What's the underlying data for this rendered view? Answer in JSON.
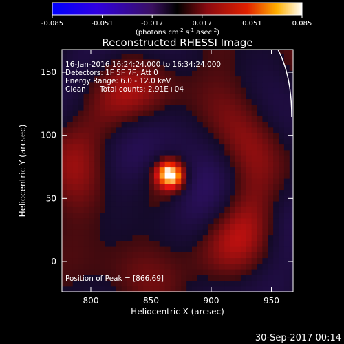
{
  "chart_data": {
    "type": "heatmap",
    "title": "Reconstructed RHESSI Image",
    "xlabel": "Heliocentric X (arcsec)",
    "ylabel": "Heliocentric Y (arcsec)",
    "xlim": [
      776,
      968
    ],
    "ylim": [
      -24,
      168
    ],
    "xticks": [
      800,
      850,
      900,
      950
    ],
    "yticks": [
      0,
      50,
      100,
      150
    ],
    "grid": false,
    "annotations": [
      "16-Jan-2016 16:24:24.000 to 16:34:24.000",
      "Detectors: 1F 5F 7F, Att 0",
      "Energy Range: 6.0 - 12.0 keV",
      "Clean",
      "Total counts: 2.91E+04"
    ],
    "peak_label": "Position of Peak = [866,69]",
    "peak": {
      "x": 866,
      "y": 69,
      "value": 0.085
    },
    "colorbar": {
      "range": [
        -0.085,
        0.085
      ],
      "ticks": [
        "-0.085",
        "-0.051",
        "-0.017",
        "0.017",
        "0.051",
        "0.085"
      ],
      "unit_label": "(photons cm",
      "unit_exp1": "-2",
      "unit_mid": " s",
      "unit_exp2": "-1",
      "unit_end": " asec",
      "unit_exp3": "-2",
      "unit_close": ")"
    },
    "timestamp": "30-Sep-2017 00:14"
  }
}
